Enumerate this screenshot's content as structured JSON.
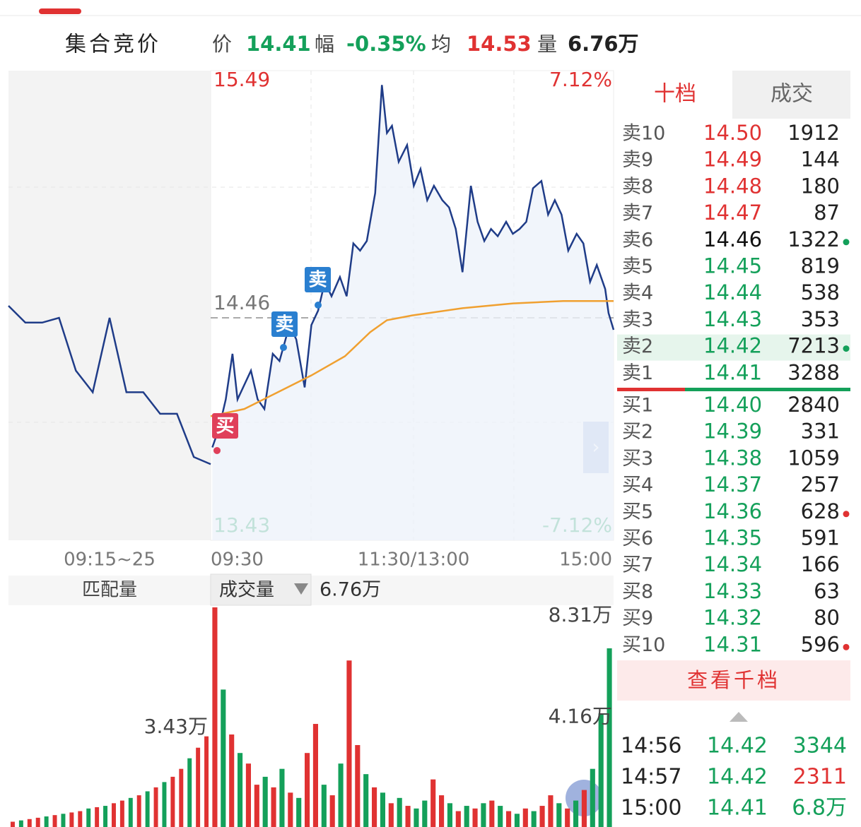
{
  "header": {
    "title": "集合竞价",
    "items": [
      {
        "label": "价",
        "value": "14.41",
        "color": "#14a05a"
      },
      {
        "label": "幅",
        "value": "-0.35%",
        "color": "#14a05a"
      },
      {
        "label": "均",
        "value": "14.53",
        "color": "#e03232"
      },
      {
        "label": "量",
        "value": "6.76万",
        "color": "#222222"
      }
    ]
  },
  "chart": {
    "type": "line",
    "ylim": [
      13.43,
      15.49
    ],
    "yticks": [
      15.49,
      14.46,
      13.43
    ],
    "y2lim": [
      -7.12,
      7.12
    ],
    "y2ticks": [
      {
        "value": 7.12,
        "label": "7.12%"
      },
      {
        "value": -7.12,
        "label": "-7.12%"
      }
    ],
    "xlim": [
      0,
      240
    ],
    "time_labels": [
      "09:15~25",
      "09:30",
      "11:30/13:00",
      "15:00"
    ],
    "price_color": "#1f3c88",
    "avg_color": "#f0a030",
    "x": [
      1,
      5,
      9,
      13,
      16,
      20,
      24,
      28,
      32,
      37,
      41,
      47,
      51,
      56,
      60,
      64,
      68,
      72,
      77,
      81,
      85,
      89,
      93,
      98,
      102,
      105,
      108,
      112,
      117,
      121,
      125,
      129,
      133,
      138,
      142,
      146,
      150,
      155,
      159,
      163,
      167,
      171,
      176,
      180,
      184,
      188,
      192,
      197,
      201,
      205,
      209,
      213,
      218,
      222,
      226,
      230,
      235,
      237,
      240
    ],
    "price": [
      13.92,
      14.0,
      14.12,
      14.31,
      14.12,
      14.18,
      14.24,
      14.12,
      14.08,
      14.31,
      14.28,
      14.43,
      14.37,
      14.17,
      14.43,
      14.49,
      14.61,
      14.55,
      14.63,
      14.55,
      14.77,
      14.74,
      14.78,
      14.98,
      15.43,
      15.23,
      15.26,
      15.11,
      15.18,
      15.01,
      15.08,
      14.95,
      15.01,
      14.95,
      14.92,
      14.83,
      14.65,
      15.01,
      14.86,
      14.78,
      14.83,
      14.8,
      14.86,
      14.81,
      14.83,
      14.86,
      15.0,
      15.03,
      14.89,
      14.95,
      14.89,
      14.74,
      14.81,
      14.77,
      14.61,
      14.68,
      14.58,
      14.48,
      14.41
    ],
    "avg_x": [
      0,
      20,
      40,
      60,
      80,
      95,
      105,
      120,
      150,
      180,
      210,
      240
    ],
    "avg": [
      14.05,
      14.08,
      14.15,
      14.22,
      14.3,
      14.4,
      14.45,
      14.47,
      14.5,
      14.52,
      14.53,
      14.53
    ],
    "auction_prices": [
      14.51,
      14.44,
      14.44,
      14.46,
      14.24,
      14.15,
      14.46,
      14.15,
      14.15,
      14.06,
      14.06,
      13.88,
      13.85
    ],
    "markers": [
      {
        "label": "买",
        "color": "#e0405a"
      },
      {
        "label": "卖",
        "color": "#2a7fd0"
      },
      {
        "label": "卖",
        "color": "#2a7fd0"
      }
    ]
  },
  "volume": {
    "type": "bar",
    "tab_left": "匹配量",
    "tab": "成交量",
    "total": "6.76万",
    "ylim": [
      0,
      8.31
    ],
    "yticks": [
      {
        "value": 8.31,
        "label": "8.31万"
      },
      {
        "value": 4.16,
        "label": "4.16万"
      }
    ],
    "auction_label": {
      "value": 3.43,
      "label": "3.43万"
    },
    "up_color": "#e03232",
    "down_color": "#14a05a",
    "values": [
      8.31,
      5.2,
      3.5,
      2.8,
      2.4,
      1.6,
      1.9,
      1.5,
      2.2,
      1.3,
      1.1,
      2.8,
      3.9,
      1.6,
      1.2,
      2.4,
      6.3,
      3.1,
      2.0,
      1.5,
      1.3,
      0.9,
      1.1,
      0.8,
      0.7,
      1.0,
      1.8,
      1.2,
      0.9,
      0.6,
      0.8,
      0.7,
      0.9,
      1.0,
      0.8,
      0.6,
      0.5,
      0.7,
      0.6,
      0.8,
      1.2,
      0.9,
      0.7,
      1.0,
      1.4,
      2.2,
      4.3,
      6.76
    ],
    "up": [
      true,
      false,
      true,
      false,
      true,
      true,
      false,
      true,
      false,
      true,
      false,
      true,
      true,
      false,
      true,
      false,
      true,
      true,
      false,
      true,
      false,
      true,
      false,
      true,
      false,
      false,
      true,
      true,
      false,
      true,
      false,
      true,
      false,
      true,
      false,
      true,
      false,
      true,
      false,
      true,
      true,
      false,
      true,
      false,
      true,
      false,
      false,
      false
    ],
    "auction_values": [
      0.2,
      0.25,
      0.3,
      0.35,
      0.4,
      0.45,
      0.5,
      0.55,
      0.6,
      0.7,
      0.75,
      0.8,
      0.9,
      1.0,
      1.1,
      1.2,
      1.35,
      1.5,
      1.7,
      1.9,
      2.2,
      2.6,
      3.0,
      3.43
    ],
    "auction_up": [
      true,
      false,
      true,
      true,
      false,
      true,
      false,
      true,
      true,
      false,
      true,
      false,
      true,
      true,
      false,
      true,
      false,
      true,
      false,
      true,
      true,
      false,
      true,
      true
    ]
  },
  "order_book": {
    "tabs": [
      "十档",
      "成交"
    ],
    "asks": [
      {
        "label": "卖10",
        "price": "14.50",
        "volume": "1912",
        "color": "#e03232"
      },
      {
        "label": "卖9",
        "price": "14.49",
        "volume": "144",
        "color": "#e03232"
      },
      {
        "label": "卖8",
        "price": "14.48",
        "volume": "180",
        "color": "#e03232"
      },
      {
        "label": "卖7",
        "price": "14.47",
        "volume": "87",
        "color": "#e03232"
      },
      {
        "label": "卖6",
        "price": "14.46",
        "volume": "1322",
        "color": "#111111",
        "dot": "#14a05a"
      },
      {
        "label": "卖5",
        "price": "14.45",
        "volume": "819",
        "color": "#14a05a"
      },
      {
        "label": "卖4",
        "price": "14.44",
        "volume": "538",
        "color": "#14a05a"
      },
      {
        "label": "卖3",
        "price": "14.43",
        "volume": "353",
        "color": "#14a05a"
      },
      {
        "label": "卖2",
        "price": "14.42",
        "volume": "7213",
        "color": "#14a05a",
        "dot": "#14a05a",
        "highlight": "#e6f5ec"
      },
      {
        "label": "卖1",
        "price": "14.41",
        "volume": "3288",
        "color": "#14a05a"
      }
    ],
    "bids": [
      {
        "label": "买1",
        "price": "14.40",
        "volume": "2840",
        "color": "#14a05a"
      },
      {
        "label": "买2",
        "price": "14.39",
        "volume": "331",
        "color": "#14a05a"
      },
      {
        "label": "买3",
        "price": "14.38",
        "volume": "1059",
        "color": "#14a05a"
      },
      {
        "label": "买4",
        "price": "14.37",
        "volume": "257",
        "color": "#14a05a"
      },
      {
        "label": "买5",
        "price": "14.36",
        "volume": "628",
        "color": "#14a05a",
        "dot": "#e03232"
      },
      {
        "label": "买6",
        "price": "14.35",
        "volume": "591",
        "color": "#14a05a"
      },
      {
        "label": "买7",
        "price": "14.34",
        "volume": "166",
        "color": "#14a05a"
      },
      {
        "label": "买8",
        "price": "14.33",
        "volume": "63",
        "color": "#14a05a"
      },
      {
        "label": "买9",
        "price": "14.32",
        "volume": "80",
        "color": "#14a05a"
      },
      {
        "label": "买10",
        "price": "14.31",
        "volume": "596",
        "color": "#14a05a",
        "dot": "#e03232"
      }
    ],
    "button": "查看千档"
  },
  "trades": [
    {
      "time": "14:56",
      "price": "14.42",
      "volume": "3344",
      "volume_color": "#14a05a"
    },
    {
      "time": "14:57",
      "price": "14.42",
      "volume": "2311",
      "volume_color": "#e03232"
    },
    {
      "time": "15:00",
      "price": "14.41",
      "volume": "6.8万",
      "volume_color": "#14a05a"
    }
  ]
}
